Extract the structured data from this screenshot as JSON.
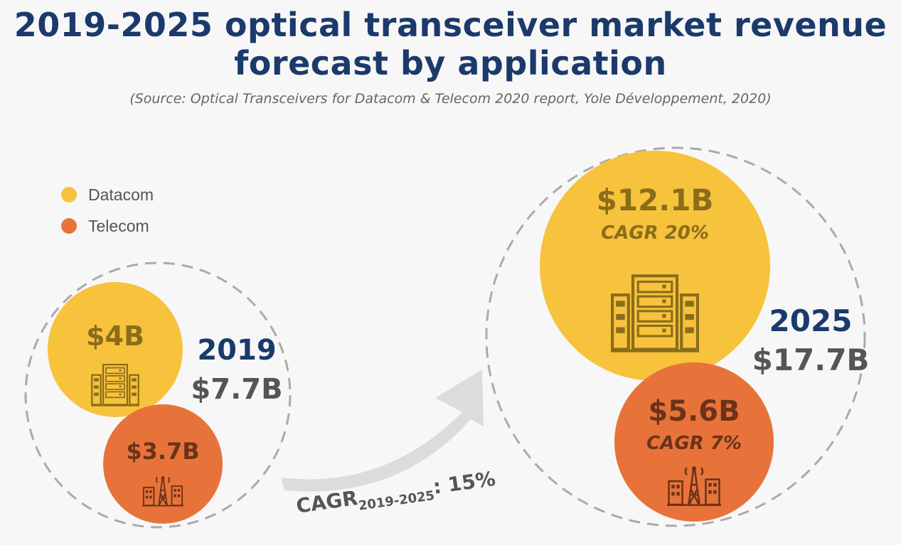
{
  "title_line1": "2019-2025 optical transceiver market revenue",
  "title_line2": "forecast by application",
  "source": "(Source: Optical Transceivers for Datacom & Telecom 2020 report, Yole Développement, 2020)",
  "colors": {
    "datacom": "#f7c23c",
    "telecom": "#e8733a",
    "navy": "#1b3a6b",
    "gray": "#555555"
  },
  "chart_data": {
    "type": "bubble",
    "title": "2019-2025 optical transceiver market revenue forecast by application",
    "legend": [
      {
        "name": "Datacom",
        "color": "#f7c23c"
      },
      {
        "name": "Telecom",
        "color": "#e8733a"
      }
    ],
    "years": [
      {
        "year": "2019",
        "total": 7.7,
        "total_label": "$7.7B",
        "segments": [
          {
            "name": "Datacom",
            "value": 4,
            "label": "$4B",
            "cagr_label": ""
          },
          {
            "name": "Telecom",
            "value": 3.7,
            "label": "$3.7B",
            "cagr_label": ""
          }
        ]
      },
      {
        "year": "2025",
        "total": 17.7,
        "total_label": "$17.7B",
        "segments": [
          {
            "name": "Datacom",
            "value": 12.1,
            "label": "$12.1B",
            "cagr_label": "CAGR 20%"
          },
          {
            "name": "Telecom",
            "value": 5.6,
            "label": "$5.6B",
            "cagr_label": "CAGR 7%"
          }
        ]
      }
    ],
    "overall_cagr": {
      "prefix": "CAGR",
      "period": "2019-2025",
      "value": ": 15%"
    }
  }
}
